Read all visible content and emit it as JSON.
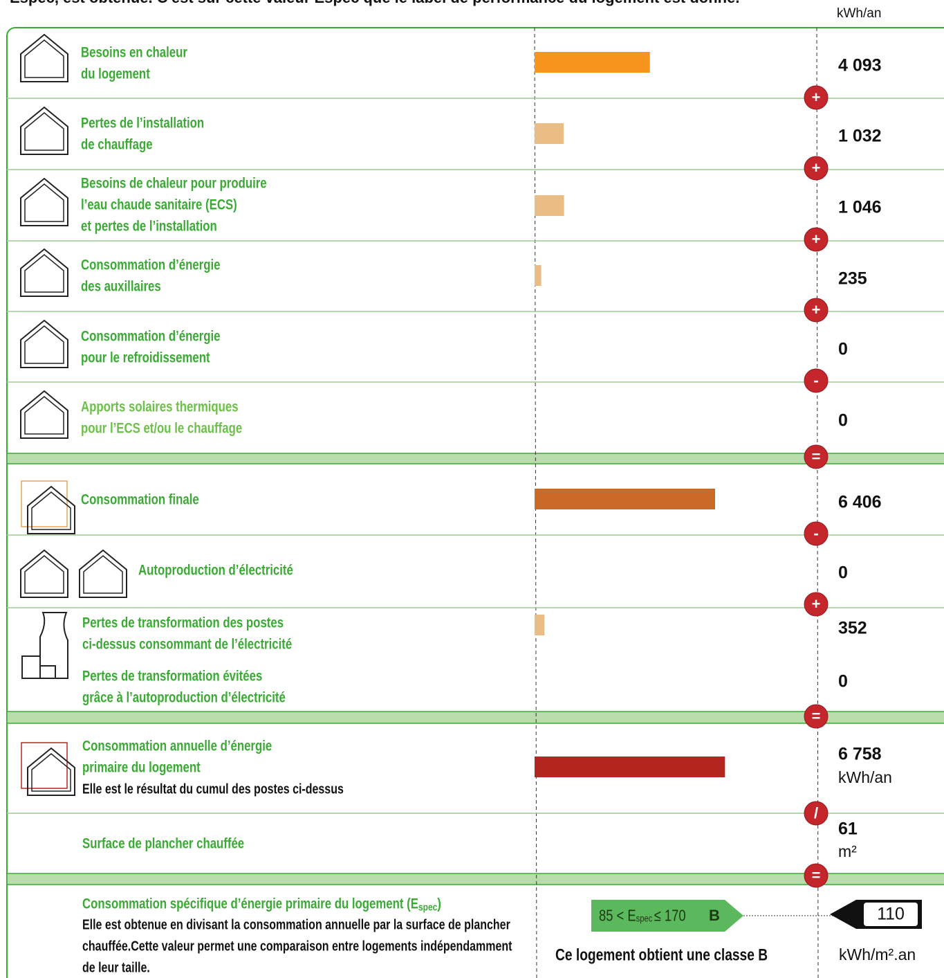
{
  "intro": "Espec, est obtenue. C'est sur cette valeur Espec que le label de performance du logement est donné.",
  "unit_header": "kWh/an",
  "rows": [
    {
      "label": [
        "Besoins en chaleur",
        "du logement"
      ],
      "value": {
        "value": 4093,
        "label": "4 093"
      },
      "bar_color": "#f7941d",
      "operator": "+"
    },
    {
      "label": [
        "Pertes de l’installation",
        "de chauffage"
      ],
      "value": {
        "value": 1032,
        "label": "1 032"
      },
      "bar_color": "#e9bd85",
      "operator": "+"
    },
    {
      "label": [
        "Besoins de chaleur pour produire",
        "l’eau chaude sanitaire (ECS)",
        "et pertes de l’installation"
      ],
      "value": {
        "value": 1046,
        "label": "1 046"
      },
      "bar_color": "#e9bd85",
      "operator": "+"
    },
    {
      "label": [
        "Consommation d’énergie",
        "des auxillaires"
      ],
      "value": 235,
      "bar_color": "#e9bd85",
      "operator": "+"
    },
    {
      "label": [
        "Consommation d’énergie",
        "pour le refroidissement"
      ],
      "value": 0,
      "bar_color": "#e9bd85",
      "operator": "-"
    },
    {
      "label": [
        "Apports solaires thermiques",
        "pour l’ECS et/ou le chauffage"
      ],
      "value": 0,
      "bar_color": "#e9bd85",
      "operator": "=",
      "label_color": "#6cc04a"
    },
    {
      "label": [
        "Consommation finale"
      ],
      "value": {
        "value": 6406,
        "label": "6 406"
      },
      "bar_color": "#c96a28",
      "operator": "-"
    },
    {
      "label": [
        "Autoproduction d’électricité"
      ],
      "value": 0,
      "bar_color": "#e9bd85",
      "operator": "+"
    },
    {
      "label": [
        "Pertes de transformation des postes",
        "ci-dessus consommant de l’électricité"
      ],
      "value": 352,
      "bar_color": "#e9bd85"
    },
    {
      "label": [
        "Pertes de transformation évitées",
        "grâce à l’autoproduction d’électricité"
      ],
      "value": 0,
      "bar_color": "#e9bd85",
      "operator": "="
    },
    {
      "label": [
        "Consommation annuelle d’énergie",
        "primaire du logement"
      ],
      "note": "Elle est le résultat du cumul des postes ci-dessus",
      "value": {
        "value": 6758,
        "label": "6 758"
      },
      "unit": "kWh/an",
      "bar_color": "#b32620",
      "operator": "/"
    },
    {
      "label": [
        "Surface de plancher chauffée"
      ],
      "value": 61,
      "unit": "m²",
      "operator": "="
    }
  ],
  "result": {
    "title": [
      "Consommation spécifique d’énergie primaire du logement (E",
      "spec",
      ")"
    ],
    "description": [
      "Elle est obtenue en divisant la consommation annuelle par la surface de plancher",
      "chauffée.Cette valeur permet une comparaison entre logements indépendamment",
      "de leur taille."
    ],
    "class_box": {
      "before": "85 < E",
      "subscript": "spec",
      "after": "≤ 170",
      "class": "B",
      "color": "#5cb85c"
    },
    "class_text": "Ce logement obtient une classe B",
    "value": 110,
    "unit": "kWh/m².an"
  }
}
